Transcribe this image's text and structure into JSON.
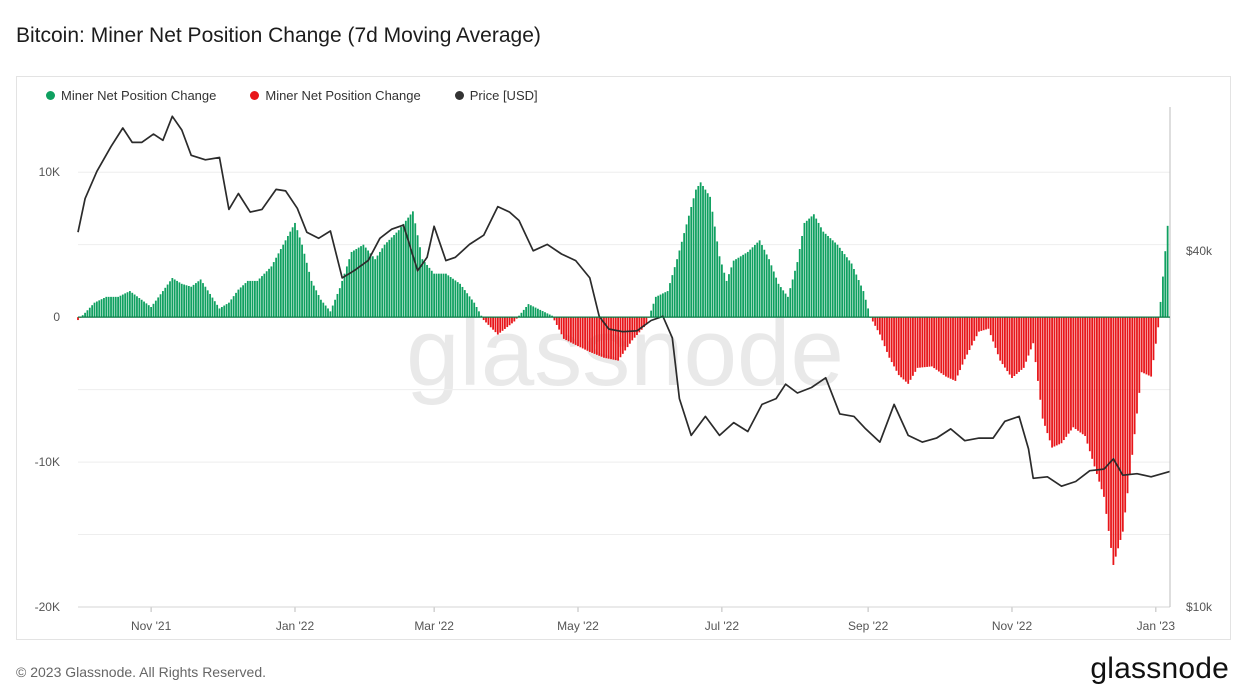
{
  "title": "Bitcoin: Miner Net Position Change (7d Moving Average)",
  "legend": [
    {
      "label": "Miner Net Position Change",
      "color": "#0fa060"
    },
    {
      "label": "Miner Net Position Change",
      "color": "#e8161a"
    },
    {
      "label": "Price [USD]",
      "color": "#333333"
    }
  ],
  "watermark": "glassnode",
  "footer": "© 2023 Glassnode. All Rights Reserved.",
  "brand": "glassnode",
  "chart_data": {
    "type": "bar",
    "x_ticks": [
      "Nov '21",
      "Jan '22",
      "Mar '22",
      "May '22",
      "Jul '22",
      "Sep '22",
      "Nov '22",
      "Jan '23"
    ],
    "x_tick_dates": [
      "2021-11-01",
      "2022-01-01",
      "2022-03-01",
      "2022-05-01",
      "2022-07-01",
      "2022-09-01",
      "2022-11-01",
      "2023-01-01"
    ],
    "x_range": [
      "2021-10-01",
      "2023-01-07"
    ],
    "y_left": {
      "ticks": [
        "10K",
        "0",
        "-10K",
        "-20K"
      ],
      "tick_values": [
        10000,
        0,
        -10000,
        -20000
      ],
      "range": [
        -20000,
        14500
      ]
    },
    "y_right": {
      "ticks": [
        "$40k",
        "$10k"
      ],
      "tick_values": [
        40000,
        10000
      ],
      "scale": "log",
      "range": [
        10000,
        70000
      ]
    },
    "grid": true,
    "legend_position": "top-left",
    "net_position_change": [
      [
        "2021-10-01",
        -200
      ],
      [
        "2021-10-04",
        300
      ],
      [
        "2021-10-08",
        1000
      ],
      [
        "2021-10-13",
        1400
      ],
      [
        "2021-10-18",
        1400
      ],
      [
        "2021-10-23",
        1800
      ],
      [
        "2021-10-28",
        1200
      ],
      [
        "2021-11-01",
        700
      ],
      [
        "2021-11-06",
        1800
      ],
      [
        "2021-11-10",
        2700
      ],
      [
        "2021-11-14",
        2300
      ],
      [
        "2021-11-18",
        2100
      ],
      [
        "2021-11-22",
        2600
      ],
      [
        "2021-11-26",
        1600
      ],
      [
        "2021-11-30",
        600
      ],
      [
        "2021-12-04",
        1000
      ],
      [
        "2021-12-08",
        1900
      ],
      [
        "2021-12-12",
        2500
      ],
      [
        "2021-12-16",
        2500
      ],
      [
        "2021-12-22",
        3500
      ],
      [
        "2021-12-27",
        5000
      ],
      [
        "2022-01-01",
        6500
      ],
      [
        "2022-01-04",
        5000
      ],
      [
        "2022-01-08",
        2500
      ],
      [
        "2022-01-12",
        1200
      ],
      [
        "2022-01-16",
        400
      ],
      [
        "2022-01-20",
        2000
      ],
      [
        "2022-01-25",
        4500
      ],
      [
        "2022-01-30",
        5000
      ],
      [
        "2022-02-04",
        4000
      ],
      [
        "2022-02-08",
        5000
      ],
      [
        "2022-02-14",
        6000
      ],
      [
        "2022-02-20",
        7300
      ],
      [
        "2022-02-24",
        4000
      ],
      [
        "2022-03-01",
        3000
      ],
      [
        "2022-03-06",
        3000
      ],
      [
        "2022-03-12",
        2300
      ],
      [
        "2022-03-18",
        1000
      ],
      [
        "2022-03-22",
        -200
      ],
      [
        "2022-03-28",
        -1200
      ],
      [
        "2022-04-04",
        -300
      ],
      [
        "2022-04-10",
        900
      ],
      [
        "2022-04-15",
        500
      ],
      [
        "2022-04-20",
        100
      ],
      [
        "2022-04-25",
        -1500
      ],
      [
        "2022-05-01",
        -2000
      ],
      [
        "2022-05-06",
        -2400
      ],
      [
        "2022-05-12",
        -2800
      ],
      [
        "2022-05-18",
        -3000
      ],
      [
        "2022-05-24",
        -1600
      ],
      [
        "2022-05-30",
        -500
      ],
      [
        "2022-06-03",
        1400
      ],
      [
        "2022-06-08",
        1800
      ],
      [
        "2022-06-12",
        4000
      ],
      [
        "2022-06-16",
        6400
      ],
      [
        "2022-06-20",
        8800
      ],
      [
        "2022-06-22",
        9300
      ],
      [
        "2022-06-26",
        8300
      ],
      [
        "2022-06-30",
        4200
      ],
      [
        "2022-07-03",
        2500
      ],
      [
        "2022-07-06",
        3900
      ],
      [
        "2022-07-12",
        4500
      ],
      [
        "2022-07-17",
        5300
      ],
      [
        "2022-07-21",
        4000
      ],
      [
        "2022-07-25",
        2300
      ],
      [
        "2022-07-29",
        1400
      ],
      [
        "2022-08-02",
        3800
      ],
      [
        "2022-08-05",
        6500
      ],
      [
        "2022-08-09",
        7100
      ],
      [
        "2022-08-13",
        5900
      ],
      [
        "2022-08-19",
        5000
      ],
      [
        "2022-08-25",
        3700
      ],
      [
        "2022-08-30",
        1800
      ],
      [
        "2022-09-02",
        0
      ],
      [
        "2022-09-06",
        -1200
      ],
      [
        "2022-09-10",
        -2800
      ],
      [
        "2022-09-14",
        -4000
      ],
      [
        "2022-09-18",
        -4600
      ],
      [
        "2022-09-22",
        -3500
      ],
      [
        "2022-09-28",
        -3400
      ],
      [
        "2022-10-04",
        -4100
      ],
      [
        "2022-10-08",
        -4400
      ],
      [
        "2022-10-12",
        -2900
      ],
      [
        "2022-10-18",
        -1000
      ],
      [
        "2022-10-22",
        -800
      ],
      [
        "2022-10-27",
        -3000
      ],
      [
        "2022-11-01",
        -4200
      ],
      [
        "2022-11-06",
        -3500
      ],
      [
        "2022-11-10",
        -1800
      ],
      [
        "2022-11-14",
        -7000
      ],
      [
        "2022-11-18",
        -9000
      ],
      [
        "2022-11-22",
        -8700
      ],
      [
        "2022-11-27",
        -7600
      ],
      [
        "2022-12-02",
        -8200
      ],
      [
        "2022-12-06",
        -10300
      ],
      [
        "2022-12-10",
        -12400
      ],
      [
        "2022-12-14",
        -17100
      ],
      [
        "2022-12-18",
        -14800
      ],
      [
        "2022-12-22",
        -9500
      ],
      [
        "2022-12-26",
        -3800
      ],
      [
        "2022-12-30",
        -4100
      ],
      [
        "2023-01-02",
        -700
      ],
      [
        "2023-01-04",
        2800
      ],
      [
        "2023-01-06",
        6300
      ]
    ],
    "price_usd": [
      [
        "2021-10-01",
        43000
      ],
      [
        "2021-10-04",
        49000
      ],
      [
        "2021-10-09",
        54500
      ],
      [
        "2021-10-15",
        60000
      ],
      [
        "2021-10-20",
        64500
      ],
      [
        "2021-10-24",
        61000
      ],
      [
        "2021-10-28",
        61000
      ],
      [
        "2021-11-02",
        63000
      ],
      [
        "2021-11-06",
        61500
      ],
      [
        "2021-11-10",
        67500
      ],
      [
        "2021-11-14",
        64000
      ],
      [
        "2021-11-18",
        58000
      ],
      [
        "2021-11-24",
        57000
      ],
      [
        "2021-11-30",
        57500
      ],
      [
        "2021-12-04",
        47000
      ],
      [
        "2021-12-08",
        50000
      ],
      [
        "2021-12-13",
        46500
      ],
      [
        "2021-12-18",
        47000
      ],
      [
        "2021-12-24",
        50800
      ],
      [
        "2021-12-28",
        50500
      ],
      [
        "2022-01-02",
        47200
      ],
      [
        "2022-01-06",
        43000
      ],
      [
        "2022-01-11",
        42000
      ],
      [
        "2022-01-16",
        43200
      ],
      [
        "2022-01-21",
        36000
      ],
      [
        "2022-01-26",
        37000
      ],
      [
        "2022-02-01",
        38500
      ],
      [
        "2022-02-06",
        42000
      ],
      [
        "2022-02-11",
        43500
      ],
      [
        "2022-02-16",
        44200
      ],
      [
        "2022-02-22",
        37000
      ],
      [
        "2022-02-26",
        39000
      ],
      [
        "2022-03-01",
        44000
      ],
      [
        "2022-03-06",
        38500
      ],
      [
        "2022-03-10",
        39000
      ],
      [
        "2022-03-16",
        41000
      ],
      [
        "2022-03-22",
        42500
      ],
      [
        "2022-03-28",
        47500
      ],
      [
        "2022-04-02",
        46500
      ],
      [
        "2022-04-06",
        45000
      ],
      [
        "2022-04-12",
        40000
      ],
      [
        "2022-04-18",
        41000
      ],
      [
        "2022-04-24",
        39500
      ],
      [
        "2022-04-30",
        38500
      ],
      [
        "2022-05-06",
        36000
      ],
      [
        "2022-05-10",
        31000
      ],
      [
        "2022-05-14",
        29500
      ],
      [
        "2022-05-20",
        29200
      ],
      [
        "2022-05-26",
        29300
      ],
      [
        "2022-06-01",
        30500
      ],
      [
        "2022-06-06",
        31000
      ],
      [
        "2022-06-10",
        28500
      ],
      [
        "2022-06-13",
        22500
      ],
      [
        "2022-06-18",
        19500
      ],
      [
        "2022-06-24",
        21000
      ],
      [
        "2022-06-30",
        19500
      ],
      [
        "2022-07-06",
        20500
      ],
      [
        "2022-07-12",
        19800
      ],
      [
        "2022-07-18",
        22000
      ],
      [
        "2022-07-24",
        22500
      ],
      [
        "2022-07-28",
        23800
      ],
      [
        "2022-08-02",
        23000
      ],
      [
        "2022-08-08",
        23500
      ],
      [
        "2022-08-14",
        24400
      ],
      [
        "2022-08-20",
        21200
      ],
      [
        "2022-08-26",
        21000
      ],
      [
        "2022-08-31",
        20000
      ],
      [
        "2022-09-06",
        19000
      ],
      [
        "2022-09-12",
        22000
      ],
      [
        "2022-09-18",
        19500
      ],
      [
        "2022-09-24",
        19000
      ],
      [
        "2022-09-30",
        19300
      ],
      [
        "2022-10-06",
        20000
      ],
      [
        "2022-10-12",
        19100
      ],
      [
        "2022-10-18",
        19300
      ],
      [
        "2022-10-24",
        19300
      ],
      [
        "2022-10-29",
        20600
      ],
      [
        "2022-11-04",
        21000
      ],
      [
        "2022-11-08",
        18500
      ],
      [
        "2022-11-10",
        16500
      ],
      [
        "2022-11-16",
        16600
      ],
      [
        "2022-11-22",
        16000
      ],
      [
        "2022-11-28",
        16300
      ],
      [
        "2022-12-04",
        17000
      ],
      [
        "2022-12-10",
        17100
      ],
      [
        "2022-12-14",
        17800
      ],
      [
        "2022-12-18",
        16700
      ],
      [
        "2022-12-24",
        16800
      ],
      [
        "2022-12-30",
        16600
      ],
      [
        "2023-01-07",
        16950
      ]
    ]
  }
}
